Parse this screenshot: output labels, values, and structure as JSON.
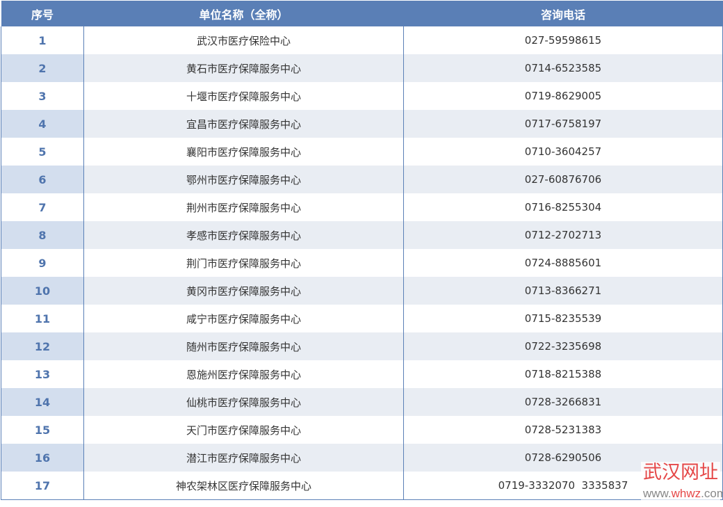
{
  "headers": [
    "序号",
    "单位名称（全称）",
    "咨询电话"
  ],
  "rows": [
    [
      "1",
      "武汉市医疗保险中心",
      "027-59598615"
    ],
    [
      "2",
      "黄石市医疗保障服务中心",
      "0714-6523585"
    ],
    [
      "3",
      "十堰市医疗保障服务中心",
      "0719-8629005"
    ],
    [
      "4",
      "宜昌市医疗保障服务中心",
      "0717-6758197"
    ],
    [
      "5",
      "襄阳市医疗保障服务中心",
      "0710-3604257"
    ],
    [
      "6",
      "鄂州市医疗保障服务中心",
      "027-60876706"
    ],
    [
      "7",
      "荆州市医疗保障服务中心",
      "0716-8255304"
    ],
    [
      "8",
      "孝感市医疗保障服务中心",
      "0712-2702713"
    ],
    [
      "9",
      "荆门市医疗保障服务中心",
      "0724-8885601"
    ],
    [
      "10",
      "黄冈市医疗保障服务中心",
      "0713-8366271"
    ],
    [
      "11",
      "咸宁市医疗保障服务中心",
      "0715-8235539"
    ],
    [
      "12",
      "随州市医疗保障服务中心",
      "0722-3235698"
    ],
    [
      "13",
      "恩施州医疗保障服务中心",
      "0718-8215388"
    ],
    [
      "14",
      "仙桃市医疗保障服务中心",
      "0728-3266831"
    ],
    [
      "15",
      "天门市医疗保障服务中心",
      "0728-5231383"
    ],
    [
      "16",
      "潜江市医疗保障服务中心",
      "0728-6290506"
    ],
    [
      "17",
      "神农架林区医疗保障服务中心",
      "0719-3332070  3335837"
    ]
  ],
  "watermark": {
    "title": "武汉网址",
    "url_pre": "www.",
    "url_mid": "whwz",
    "url_post": ".com"
  }
}
